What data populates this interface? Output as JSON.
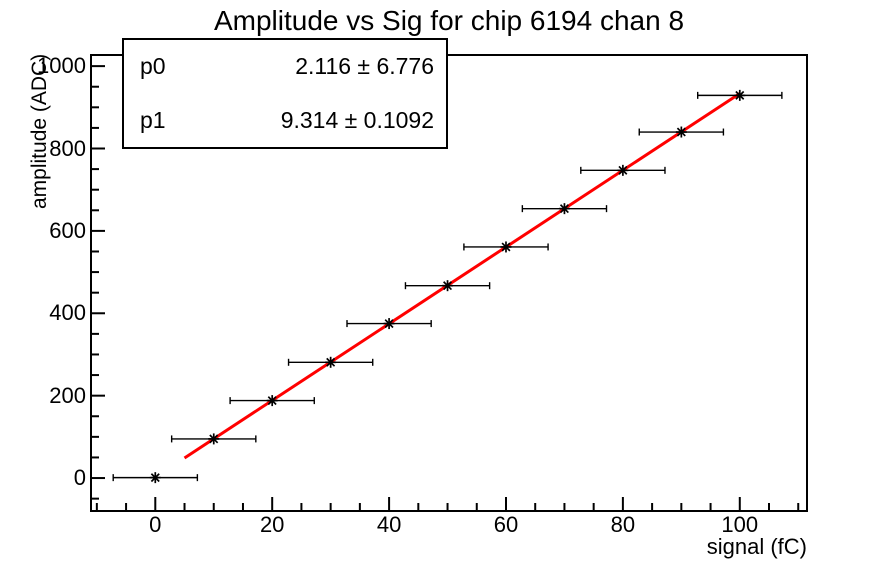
{
  "stats": {
    "rows": [
      {
        "name": "p0",
        "value": "2.116 ± 6.776"
      },
      {
        "name": "p1",
        "value": "9.314 ± 0.1092"
      }
    ]
  },
  "chart_data": {
    "type": "scatter",
    "title": "Amplitude vs Sig for chip 6194 chan 8",
    "xlabel": "signal (fC)",
    "ylabel": "amplitude (ADC)",
    "x": [
      0,
      10,
      20,
      30,
      40,
      50,
      60,
      70,
      80,
      90,
      100
    ],
    "y": [
      1,
      95,
      188,
      281,
      375,
      467,
      561,
      654,
      747,
      840,
      929
    ],
    "x_error": 1.5,
    "xlim": [
      -11,
      111.5
    ],
    "ylim": [
      -80,
      1027
    ],
    "x_major_ticks": [
      0,
      20,
      40,
      60,
      80,
      100
    ],
    "x_minor_step": 5,
    "y_major_ticks": [
      0,
      200,
      400,
      600,
      800,
      1000
    ],
    "y_minor_step": 50,
    "x_tick_labels": [
      "0",
      "20",
      "40",
      "60",
      "80",
      "100"
    ],
    "y_tick_labels": [
      "0",
      "200",
      "400",
      "600",
      "800",
      "1000"
    ],
    "marker": "asterisk",
    "grid": false,
    "legend": "none",
    "fit": {
      "p0": 2.116,
      "p1": 9.314,
      "x_range": [
        5,
        100
      ]
    },
    "colors": {
      "axis": "#000000",
      "marker": "#000000",
      "fit_line": "#ff0000",
      "background": "#ffffff"
    }
  }
}
